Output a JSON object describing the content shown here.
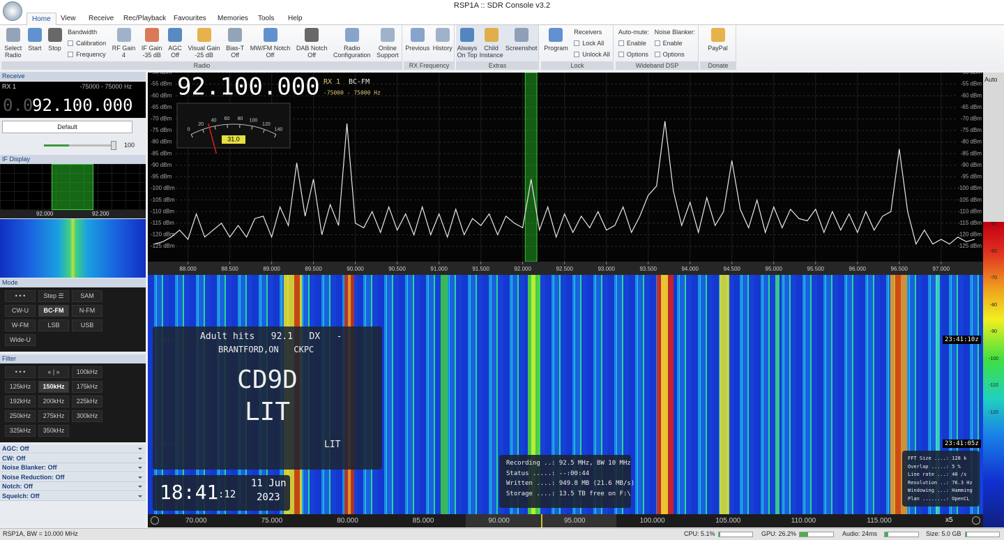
{
  "title_bar": {
    "title": "RSP1A :: SDR Console v3.2",
    "style": "Style"
  },
  "menu": [
    "Home",
    "View",
    "Receive",
    "Rec/Playback",
    "Favourites",
    "Memories",
    "Tools",
    "Help"
  ],
  "ribbon": [
    {
      "label": "Radio",
      "items": [
        [
          "Select",
          "Radio"
        ],
        [
          "Start"
        ],
        [
          "Stop"
        ],
        [
          "Bandwidth",
          "Calibration",
          "Frequency"
        ],
        [
          "RF Gain",
          "4"
        ],
        [
          "IF Gain",
          "-35 dB"
        ],
        [
          "AGC",
          "Off"
        ],
        [
          "Visual Gain",
          "-25 dB"
        ],
        [
          "Bias-T",
          "Off"
        ],
        [
          "MW/FM Notch",
          "Off"
        ],
        [
          "DAB Notch",
          "Off"
        ],
        [
          "Radio",
          "Configuration"
        ],
        [
          "Online",
          "Support"
        ]
      ]
    },
    {
      "label": "RX Frequency",
      "items": [
        [
          "Previous"
        ],
        [
          "History"
        ]
      ]
    },
    {
      "label": "Extras",
      "items": [
        [
          "Always",
          "On Top"
        ],
        [
          "Child",
          "Instance"
        ],
        [
          "Screenshot"
        ]
      ]
    },
    {
      "label": "Lock",
      "items": [
        [
          "Program"
        ],
        [
          "Receivers",
          "Lock All",
          "Unlock All"
        ]
      ]
    },
    {
      "label": "Wideband DSP",
      "items": [
        [
          "Auto-mute:",
          "Enable",
          "Options"
        ],
        [
          "Noise Blanker:",
          "Enable",
          "Options"
        ]
      ]
    },
    {
      "label": "Donate",
      "items": [
        [
          "PayPal"
        ]
      ]
    }
  ],
  "left": {
    "receive": "Receive",
    "rx": "RX 1",
    "range": "-75000 - 75000 Hz",
    "freq_dim": "0.0",
    "freq": "92.100.000",
    "preset": "Default",
    "volume": "100",
    "if_display": "IF Display",
    "if_ticks": [
      "92.000",
      "92.200"
    ],
    "mode_title": "Mode",
    "modes": [
      "• • •",
      "Step ☰",
      "SAM",
      "CW-U",
      "BC-FM",
      "N-FM",
      "W-FM",
      "LSB",
      "USB",
      "Wide-U"
    ],
    "filter_title": "Filter",
    "filters": [
      "• • •",
      "« | »",
      "100kHz",
      "125kHz",
      "150kHz",
      "175kHz",
      "192kHz",
      "200kHz",
      "225kHz",
      "250kHz",
      "275kHz",
      "300kHz",
      "325kHz",
      "350kHz"
    ],
    "settings": [
      "AGC: Off",
      "CW: Off",
      "Noise Blanker: Off",
      "Noise Reduction: Off",
      "Notch: Off",
      "Squelch: Off"
    ]
  },
  "spectrum": {
    "freq": "92.100.000",
    "rx": "RX 1",
    "mode": "BC-FM",
    "range": "-75000 - 75000 Hz",
    "meter_ticks": [
      0,
      20,
      40,
      60,
      80,
      100,
      120,
      140
    ],
    "meter_value": 31,
    "meter_label": "31.0",
    "xlim": [
      87.52,
      97.46
    ],
    "ylim": [
      -131.6,
      -50
    ],
    "xticks": [
      {
        "value": 88,
        "label": "88.000"
      },
      {
        "value": 88.5,
        "label": "88.500"
      },
      {
        "value": 89,
        "label": "89.000"
      },
      {
        "value": 89.5,
        "label": "89.500"
      },
      {
        "value": 90,
        "label": "90.000"
      },
      {
        "value": 90.5,
        "label": "90.500"
      },
      {
        "value": 91,
        "label": "91.000"
      },
      {
        "value": 91.5,
        "label": "91.500"
      },
      {
        "value": 92,
        "label": "92.000"
      },
      {
        "value": 92.5,
        "label": "92.500"
      },
      {
        "value": 93,
        "label": "93.000"
      },
      {
        "value": 93.5,
        "label": "93.500"
      },
      {
        "value": 94,
        "label": "94.000"
      },
      {
        "value": 94.5,
        "label": "94.500"
      },
      {
        "value": 95,
        "label": "95.000"
      },
      {
        "value": 95.5,
        "label": "95.500"
      },
      {
        "value": 96,
        "label": "96.000"
      },
      {
        "value": 96.5,
        "label": "96.500"
      },
      {
        "value": 97,
        "label": "97.000"
      }
    ],
    "yticks": [
      {
        "value": -50,
        "label": "-50 dBm"
      },
      {
        "value": -55,
        "label": "-55 dBm"
      },
      {
        "value": -60,
        "label": "-60 dBm"
      },
      {
        "value": -65,
        "label": "-65 dBm"
      },
      {
        "value": -70,
        "label": "-70 dBm"
      },
      {
        "value": -75,
        "label": "-75 dBm"
      },
      {
        "value": -80,
        "label": "-80 dBm"
      },
      {
        "value": -85,
        "label": "-85 dBm"
      },
      {
        "value": -90,
        "label": "-90 dBm"
      },
      {
        "value": -95,
        "label": "-95 dBm"
      },
      {
        "value": -100,
        "label": "-100 dBm"
      },
      {
        "value": -105,
        "label": "-105 dBm"
      },
      {
        "value": -110,
        "label": "-110 dBm"
      },
      {
        "value": -115,
        "label": "-115 dBm"
      },
      {
        "value": -120,
        "label": "-120 dBm"
      },
      {
        "value": -125,
        "label": "-125 dBm"
      }
    ],
    "trace_x": [
      87.6,
      87.7,
      87.8,
      87.9,
      88.0,
      88.1,
      88.2,
      88.3,
      88.4,
      88.5,
      88.6,
      88.7,
      88.8,
      88.9,
      89.0,
      89.1,
      89.2,
      89.3,
      89.4,
      89.5,
      89.6,
      89.7,
      89.8,
      89.9,
      90.0,
      90.1,
      90.2,
      90.3,
      90.4,
      90.5,
      90.6,
      90.7,
      90.8,
      90.9,
      91.0,
      91.1,
      91.2,
      91.3,
      91.4,
      91.5,
      91.6,
      91.7,
      91.8,
      91.9,
      92.0,
      92.1,
      92.2,
      92.3,
      92.4,
      92.5,
      92.6,
      92.7,
      92.8,
      92.9,
      93.0,
      93.1,
      93.2,
      93.3,
      93.4,
      93.5,
      93.6,
      93.7,
      93.8,
      93.9,
      94.0,
      94.1,
      94.2,
      94.3,
      94.4,
      94.5,
      94.6,
      94.7,
      94.8,
      94.9,
      95.0,
      95.1,
      95.2,
      95.3,
      95.4,
      95.5,
      95.6,
      95.7,
      95.8,
      95.9,
      96.0,
      96.1,
      96.2,
      96.3,
      96.4,
      96.5,
      96.6,
      96.7,
      96.8,
      96.9,
      97.0,
      97.1,
      97.2,
      97.3,
      97.4
    ],
    "trace_y": [
      -124,
      -123,
      -121,
      -118,
      -122,
      -111,
      -121,
      -118,
      -115,
      -121,
      -116,
      -121,
      -113,
      -112,
      -121,
      -108,
      -116,
      -89,
      -112,
      -96,
      -120,
      -107,
      -116,
      -72,
      -115,
      -117,
      -110,
      -119,
      -108,
      -118,
      -111,
      -120,
      -108,
      -120,
      -111,
      -121,
      -109,
      -120,
      -113,
      -116,
      -111,
      -120,
      -112,
      -115,
      -117,
      -96,
      -118,
      -108,
      -121,
      -111,
      -119,
      -112,
      -117,
      -110,
      -118,
      -116,
      -108,
      -119,
      -112,
      -103,
      -99,
      -71,
      -101,
      -116,
      -106,
      -119,
      -104,
      -116,
      -110,
      -88,
      -109,
      -117,
      -105,
      -119,
      -108,
      -117,
      -109,
      -113,
      -114,
      -109,
      -119,
      -110,
      -118,
      -111,
      -119,
      -110,
      -118,
      -112,
      -110,
      -83,
      -110,
      -124,
      -118,
      -124,
      -122,
      -124,
      -121,
      -123,
      -122
    ]
  },
  "waterfall": {
    "xticks": [
      "70.000",
      "75.000",
      "80.000",
      "85.000",
      "90.000",
      "95.000",
      "100.000",
      "105.000",
      "110.000",
      "115.000"
    ],
    "timestamps": [
      "23:41:10z",
      "23:41:05z"
    ],
    "zoom": "x5"
  },
  "rds": {
    "line1": "Adult hits   92.1   DX   -",
    "line2": "BRANTFORD,ON   CKPC",
    "big1": "CD9D",
    "big2": "LIT",
    "small": "LIT"
  },
  "clock": {
    "time": "18:41",
    "sec": ":12",
    "date": "11 Jun",
    "year": "2023"
  },
  "recording": [
    "Recording ..: 92.5 MHz, BW 10 MHz",
    "Status .....: --:00:44",
    "Written ....: 949.8 MB (21.6 MB/s)",
    "Storage ....: 13.5 TB free on F:\\"
  ],
  "fft": [
    "FFT Size ....: 128 k",
    "Overlap .....: 5 %",
    "Line rate ...: 40 /s",
    "Resolution ..: 76.3 Hz",
    "Windowing ...: Hamming",
    "Plan ........: OpenCL"
  ],
  "colorbar": {
    "auto": "Auto",
    "labels": [
      "-50",
      "-60",
      "-70",
      "-80",
      "-90",
      "-100",
      "-110",
      "-120"
    ]
  },
  "status": [
    "RSP1A, BW = 10.000 MHz",
    "CPU: 5.1%",
    "GPU: 26.2%",
    "Audio: 24ms",
    "Size: 5.0 GB"
  ]
}
